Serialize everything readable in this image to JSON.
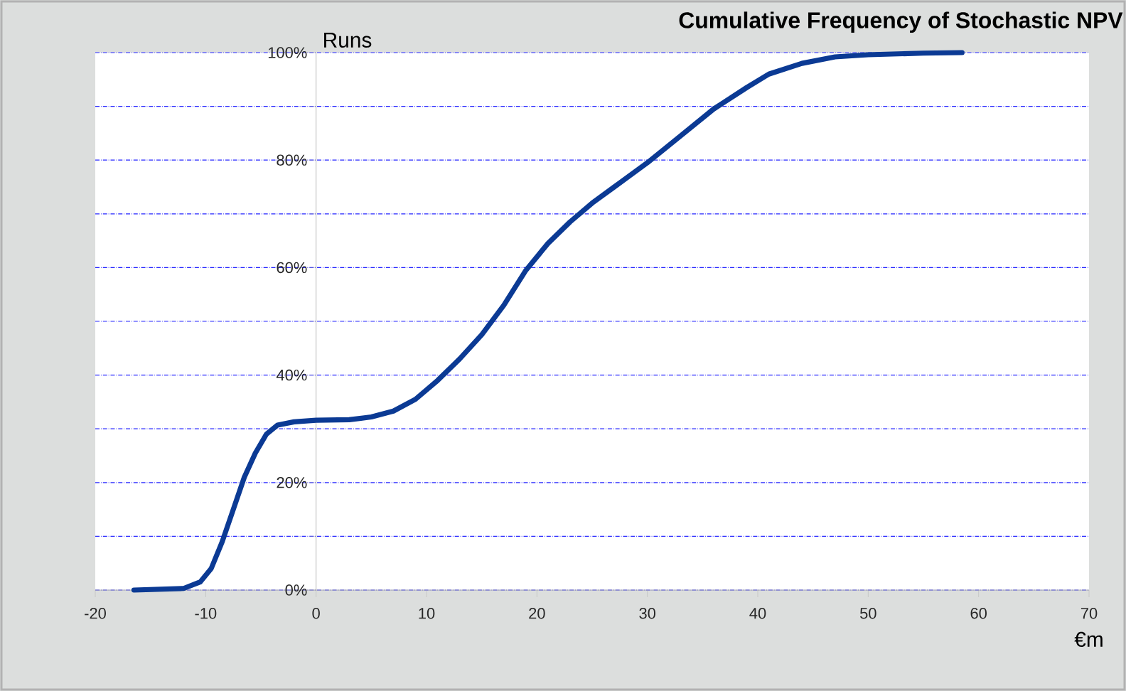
{
  "chart_data": {
    "type": "line",
    "title": "Cumulative Frequency of Stochastic NPV",
    "xlabel": "€m",
    "ylabel": "Runs",
    "series": [
      {
        "color": "#0b3a94",
        "x": [
          -16.5,
          -12,
          -10.5,
          -9.5,
          -8.5,
          -7.5,
          -6.5,
          -5.5,
          -4.5,
          -3.5,
          -2,
          0,
          3,
          5,
          7,
          9,
          11,
          13,
          15,
          17,
          19,
          21,
          23,
          25,
          27,
          30,
          33,
          36,
          39,
          41,
          44,
          47,
          50,
          55,
          58.5
        ],
        "values": [
          0,
          0.3,
          1.5,
          4,
          9,
          15,
          21,
          25.5,
          29,
          30.7,
          31.3,
          31.6,
          31.7,
          32.2,
          33.3,
          35.5,
          39,
          43,
          47.5,
          53,
          59.5,
          64.5,
          68.5,
          72,
          75,
          79.5,
          84.5,
          89.5,
          93.5,
          96,
          98,
          99.2,
          99.6,
          99.9,
          100
        ]
      }
    ],
    "xlim": [
      -20,
      70
    ],
    "xticks": [
      -20,
      -10,
      0,
      10,
      20,
      30,
      40,
      50,
      60,
      70
    ],
    "ylim": [
      0,
      100
    ],
    "yticks": [
      {
        "value": 0,
        "label": "0%"
      },
      {
        "value": 10,
        "label": null
      },
      {
        "value": 20,
        "label": "20%"
      },
      {
        "value": 30,
        "label": null
      },
      {
        "value": 40,
        "label": "40%"
      },
      {
        "value": 50,
        "label": null
      },
      {
        "value": 60,
        "label": "60%"
      },
      {
        "value": 70,
        "label": null
      },
      {
        "value": 80,
        "label": "80%"
      },
      {
        "value": 90,
        "label": null
      },
      {
        "value": 100,
        "label": "100%"
      }
    ],
    "grid": "y",
    "marker": "none",
    "line_style": "solid"
  }
}
